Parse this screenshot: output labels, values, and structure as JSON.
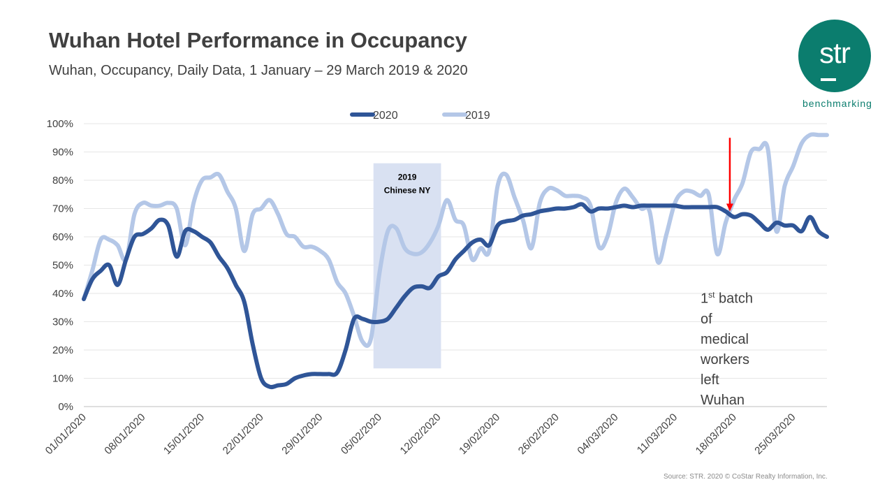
{
  "header": {
    "title": "Wuhan Hotel Performance in Occupancy",
    "subtitle": "Wuhan, Occupancy, Daily Data, 1 January – 29 March 2019 & 2020"
  },
  "logo": {
    "text": "str",
    "subtext": "benchmarking",
    "color": "#0b7d6e"
  },
  "annotation": {
    "ordinal": "1",
    "suffix": "st",
    "lines": [
      " batch",
      "of",
      "medical",
      "workers",
      "left",
      "Wuhan"
    ]
  },
  "source": "Source: STR. 2020 © CoStar Realty Information, Inc.",
  "chart_data": {
    "type": "line",
    "title": "Wuhan Hotel Performance in Occupancy",
    "xlabel": "",
    "ylabel": "",
    "ylim": [
      0,
      100
    ],
    "y_tick_labels": [
      "0%",
      "10%",
      "20%",
      "30%",
      "40%",
      "50%",
      "60%",
      "70%",
      "80%",
      "90%",
      "100%"
    ],
    "x_tick_labels": [
      "01/01/2020",
      "08/01/2020",
      "15/01/2020",
      "22/01/2020",
      "29/01/2020",
      "05/02/2020",
      "12/02/2020",
      "19/02/2020",
      "26/02/2020",
      "04/03/2020",
      "11/03/2020",
      "18/03/2020",
      "25/03/2020"
    ],
    "x_tick_days": [
      1,
      8,
      15,
      22,
      29,
      36,
      43,
      50,
      57,
      64,
      71,
      78,
      85
    ],
    "legend_position": "top",
    "shaded_region": {
      "label_line1": "2019",
      "label_line2": "Chinese NY",
      "start_day": 35.3,
      "end_day": 43.3,
      "y_from": 13.5,
      "y_to": 86,
      "color": "#d9e1f2"
    },
    "marker_arrow": {
      "day": 77.5,
      "y_from": 95,
      "y_to": 69,
      "color": "#ff0000"
    },
    "series": [
      {
        "name": "2020",
        "color": "#2f5597",
        "x": [
          1,
          2,
          3,
          4,
          5,
          6,
          7,
          8,
          9,
          10,
          11,
          12,
          13,
          14,
          15,
          16,
          17,
          18,
          19,
          20,
          21,
          22,
          23,
          24,
          25,
          26,
          27,
          28,
          29,
          30,
          31,
          32,
          33,
          34,
          35,
          36,
          37,
          38,
          39,
          40,
          41,
          42,
          43,
          44,
          45,
          46,
          47,
          48,
          49,
          50,
          51,
          52,
          53,
          54,
          55,
          56,
          57,
          58,
          59,
          60,
          61,
          62,
          63,
          64,
          65,
          66,
          67,
          68,
          69,
          70,
          71,
          72,
          73,
          74,
          75,
          76,
          77,
          78,
          79,
          80,
          81,
          82,
          83,
          84,
          85,
          86,
          87,
          88,
          89
        ],
        "values": [
          38,
          45,
          48,
          50,
          43,
          52,
          60,
          61,
          63,
          66,
          64,
          53,
          62,
          62,
          60,
          58,
          53,
          49,
          43,
          37,
          22,
          10,
          7,
          7.5,
          8,
          10,
          11,
          11.5,
          11.5,
          11.5,
          12,
          20,
          31,
          31,
          30,
          30,
          31,
          35,
          39,
          42,
          42.5,
          42,
          46,
          47.5,
          52,
          55,
          58,
          59,
          57,
          64,
          65.5,
          66,
          67.5,
          68,
          69,
          69.5,
          70,
          70,
          70.5,
          71.5,
          69,
          70,
          70,
          70.5,
          71,
          70.5,
          71,
          71,
          71,
          71,
          71,
          70.5,
          70.5,
          70.5,
          70.5,
          70.5,
          69,
          67,
          68,
          67.5,
          65,
          62.5,
          65,
          64,
          64,
          62,
          67,
          62,
          60
        ]
      },
      {
        "name": "2019",
        "color": "#b4c7e7",
        "x": [
          1,
          2,
          3,
          4,
          5,
          6,
          7,
          8,
          9,
          10,
          11,
          12,
          13,
          14,
          15,
          16,
          17,
          18,
          19,
          20,
          21,
          22,
          23,
          24,
          25,
          26,
          27,
          28,
          29,
          30,
          31,
          32,
          33,
          34,
          35,
          36,
          37,
          38,
          39,
          40,
          41,
          42,
          43,
          44,
          45,
          46,
          47,
          48,
          49,
          50,
          51,
          52,
          53,
          54,
          55,
          56,
          57,
          58,
          59,
          60,
          61,
          62,
          63,
          64,
          65,
          66,
          67,
          68,
          69,
          70,
          71,
          72,
          73,
          74,
          75,
          76,
          77,
          78,
          79,
          80,
          81,
          82,
          83,
          84,
          85,
          86,
          87,
          88,
          89
        ],
        "values": [
          38,
          48,
          59,
          59,
          57,
          52,
          68,
          72,
          71,
          71,
          72,
          70,
          57,
          72,
          80,
          81,
          82,
          76,
          70,
          55,
          68,
          70,
          73,
          68,
          61,
          60,
          56.5,
          56.5,
          55,
          52,
          44,
          40,
          32,
          23,
          24,
          47,
          62,
          63,
          56,
          54,
          54.5,
          58,
          64,
          73,
          66,
          64,
          52,
          56,
          55,
          78,
          82,
          74,
          66,
          56,
          72,
          77,
          76.5,
          74.5,
          74.5,
          74,
          71,
          56.5,
          60,
          72,
          77,
          74,
          70,
          69,
          51,
          61,
          72,
          76,
          76,
          74.5,
          75,
          54,
          65,
          73,
          79,
          90,
          91,
          91,
          62,
          78,
          85,
          93,
          96,
          96,
          96
        ]
      }
    ]
  }
}
